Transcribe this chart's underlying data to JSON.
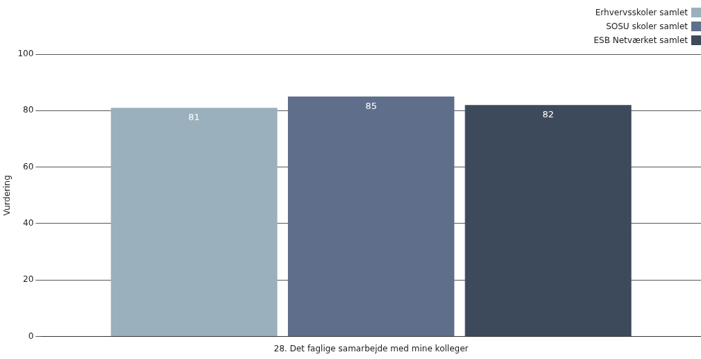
{
  "chart_data": {
    "type": "bar",
    "ylabel": "Vurdering",
    "categories": [
      "28. Det faglige samarbejde med mine kolleger"
    ],
    "series": [
      {
        "name": "Erhvervsskoler samlet",
        "color": "#9ab0bc",
        "values": [
          81
        ]
      },
      {
        "name": "SOSU skoler samlet",
        "color": "#5f6f8b",
        "values": [
          85
        ]
      },
      {
        "name": "ESB Netværket samlet",
        "color": "#3d4a5c",
        "values": [
          82
        ]
      }
    ],
    "ylim": [
      0,
      100
    ],
    "yticks": [
      0,
      20,
      40,
      60,
      80,
      100
    ],
    "grid": "y",
    "legend": "top right",
    "data_labels": true
  }
}
